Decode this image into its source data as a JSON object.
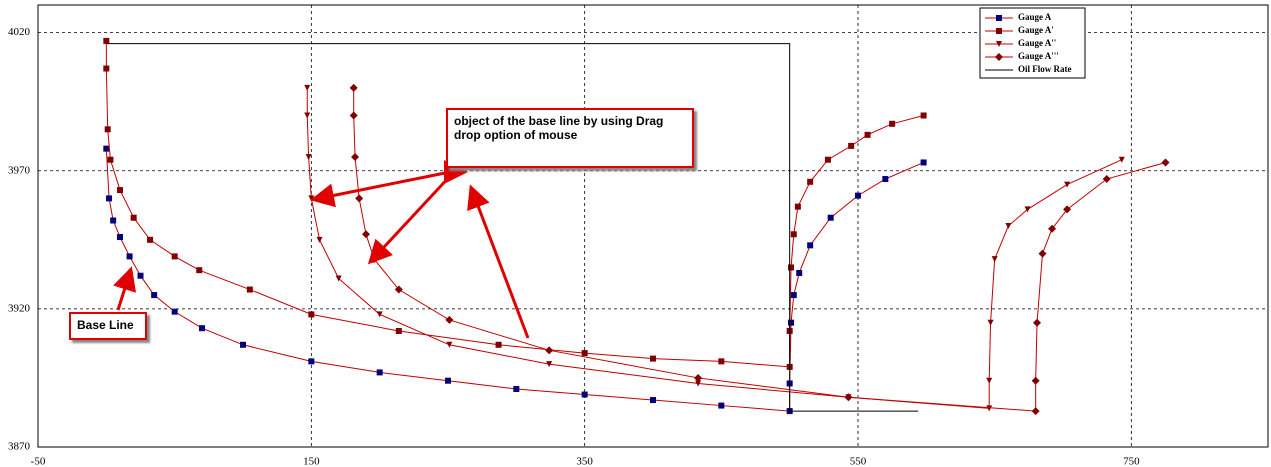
{
  "chart_data": {
    "type": "line",
    "xlim": [
      -50,
      850
    ],
    "ylim": [
      3870,
      4030
    ],
    "xticks": [
      -50,
      150,
      350,
      550,
      750
    ],
    "yticks": [
      3870,
      3920,
      3970,
      4020
    ],
    "grid": true,
    "legend": "upper right",
    "series": [
      {
        "name": "Gauge A",
        "color": "#00007f",
        "marker": "square",
        "x": [
          0,
          2,
          5,
          10,
          17,
          25,
          35,
          50,
          70,
          100,
          150,
          200,
          250,
          300,
          350,
          400,
          450,
          500,
          500,
          501,
          503,
          507,
          515,
          530,
          550,
          570,
          598
        ],
        "values": [
          3978,
          3960,
          3952,
          3946,
          3939,
          3932,
          3925,
          3919,
          3913,
          3907,
          3901,
          3897,
          3894,
          3891,
          3889,
          3887,
          3885,
          3883,
          3893,
          3915,
          3925,
          3933,
          3943,
          3953,
          3961,
          3967,
          3973
        ]
      },
      {
        "name": "Gauge A'",
        "color": "#800000",
        "marker": "square",
        "x": [
          0,
          0,
          1,
          3,
          10,
          20,
          32,
          50,
          68,
          105,
          150,
          214,
          287,
          350,
          400,
          450,
          500,
          500,
          501,
          503,
          506,
          515,
          528,
          545,
          557,
          575,
          598
        ],
        "values": [
          4017,
          4007,
          3985,
          3974,
          3963,
          3953,
          3945,
          3939,
          3934,
          3927,
          3918,
          3912,
          3907,
          3904,
          3902,
          3901,
          3899,
          3912,
          3935,
          3947,
          3957,
          3966,
          3974,
          3979,
          3983,
          3987,
          3990
        ]
      },
      {
        "name": "Gauge A''",
        "color": "#800000",
        "marker": "triangle",
        "x": [
          147,
          147,
          148,
          150,
          156,
          170,
          200,
          251,
          324,
          433,
          543,
          646,
          646,
          647,
          650,
          660,
          674,
          703,
          743
        ],
        "values": [
          4000,
          3990,
          3975,
          3960,
          3945,
          3931,
          3918,
          3907,
          3900,
          3893,
          3888,
          3884,
          3894,
          3915,
          3938,
          3950,
          3956,
          3965,
          3974
        ]
      },
      {
        "name": "Gauge A'''",
        "color": "#800000",
        "marker": "diamond",
        "x": [
          181,
          181,
          182,
          185,
          190,
          196,
          214,
          251,
          324,
          433,
          543,
          680,
          680,
          681,
          685,
          692,
          703,
          732,
          775
        ],
        "values": [
          4000,
          3990,
          3975,
          3960,
          3947,
          3938,
          3927,
          3916,
          3905,
          3895,
          3888,
          3883,
          3894,
          3915,
          3940,
          3949,
          3956,
          3967,
          3973
        ]
      },
      {
        "name": "Oil Flow Rate",
        "color": "#000000",
        "marker": "none",
        "x": [
          0,
          500,
          500,
          594
        ],
        "values": [
          4016,
          4016,
          3883,
          3883
        ]
      }
    ],
    "annotations": [
      {
        "text": "object of the base line by using Drag drop option of mouse"
      },
      {
        "text": "Base Line"
      }
    ]
  }
}
